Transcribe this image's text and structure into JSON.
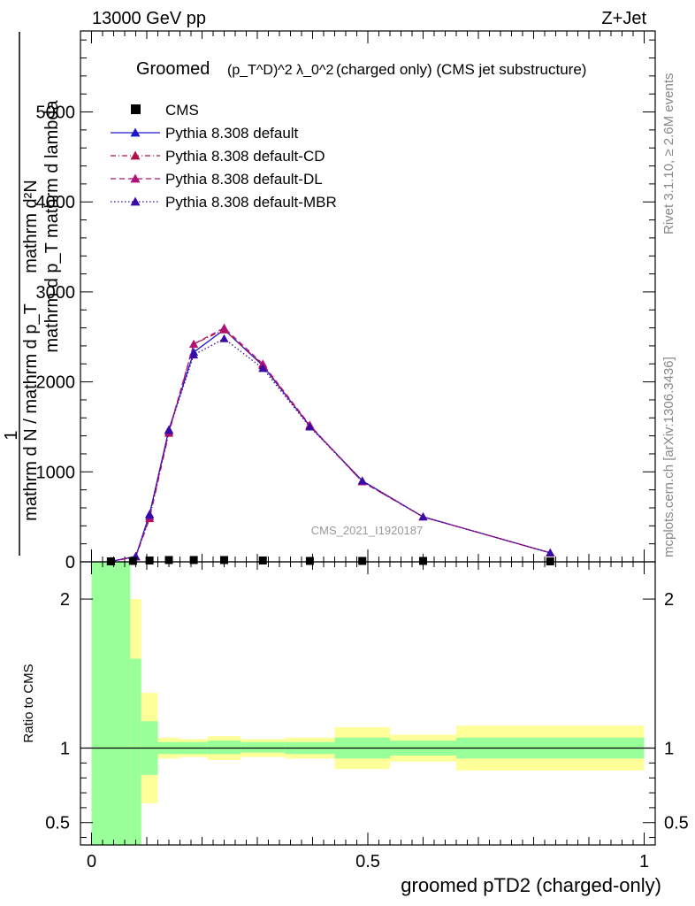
{
  "header": {
    "left": "13000 GeV pp",
    "right": "Z+Jet"
  },
  "side_labels": {
    "rivet": "Rivet 3.1.10, ≥ 2.6M events",
    "mcplots": "mcplots.cern.ch [arXiv:1306.3436]"
  },
  "title": {
    "prefix": "Groomed",
    "mathpart": "(p_T^D)^2 λ_0^2",
    "suffix": "(charged only) (CMS jet substructure)"
  },
  "watermark": "CMS_2021_I1920187",
  "ylabel_main": {
    "numerator": "mathrm d²N",
    "numerator_line2": "mathrm d p_T mathrm d lambda",
    "one": "1",
    "denominator": "mathrm d N / mathrm d p_T"
  },
  "ratio_ylabel": "Ratio to CMS",
  "xlabel": "groomed pTD2 (charged-only)",
  "colors": {
    "cms": "#000000",
    "default": "#1a1acc",
    "cd": "#b0124a",
    "dl": "#b0127a",
    "mbr": "#3a0aa8",
    "band_inner": "#99ff99",
    "band_outer": "#ffff99"
  },
  "chart_data": {
    "type": "line",
    "x_ticks": [
      "0",
      "0.5",
      "1"
    ],
    "main": {
      "ylim": [
        0,
        5900
      ],
      "y_ticks": [
        "0",
        "1000",
        "2000",
        "3000",
        "4000",
        "5000"
      ],
      "y_tick_values": [
        0,
        1000,
        2000,
        3000,
        4000,
        5000
      ],
      "xlim": [
        -0.02,
        1.02
      ],
      "legend_position": "top-left",
      "legend": [
        {
          "name": "CMS",
          "style": "square",
          "color": "#000000"
        },
        {
          "name": "Pythia 8.308 default",
          "style": "solid",
          "color": "#1a1acc"
        },
        {
          "name": "Pythia 8.308 default-CD",
          "style": "dashdot",
          "color": "#b0124a"
        },
        {
          "name": "Pythia 8.308 default-DL",
          "style": "dashed",
          "color": "#b0127a"
        },
        {
          "name": "Pythia 8.308 default-MBR",
          "style": "dotted",
          "color": "#3a0aa8"
        }
      ],
      "cms": {
        "x": [
          0.035,
          0.075,
          0.105,
          0.14,
          0.185,
          0.24,
          0.31,
          0.395,
          0.49,
          0.6,
          0.83
        ],
        "y": [
          5,
          10,
          15,
          20,
          20,
          20,
          15,
          10,
          10,
          10,
          5
        ]
      },
      "series": [
        {
          "name": "Pythia 8.308 default",
          "x": [
            0.035,
            0.08,
            0.105,
            0.14,
            0.185,
            0.24,
            0.31,
            0.395,
            0.49,
            0.6,
            0.83
          ],
          "y": [
            5,
            60,
            530,
            1470,
            2330,
            2580,
            2180,
            1510,
            900,
            500,
            100
          ]
        },
        {
          "name": "Pythia 8.308 default-CD",
          "x": [
            0.035,
            0.08,
            0.105,
            0.14,
            0.185,
            0.24,
            0.31,
            0.395,
            0.49,
            0.6,
            0.83
          ],
          "y": [
            5,
            55,
            480,
            1430,
            2420,
            2580,
            2190,
            1510,
            890,
            500,
            100
          ]
        },
        {
          "name": "Pythia 8.308 default-DL",
          "x": [
            0.035,
            0.08,
            0.105,
            0.14,
            0.185,
            0.24,
            0.31,
            0.395,
            0.49,
            0.6,
            0.83
          ],
          "y": [
            5,
            55,
            500,
            1450,
            2420,
            2600,
            2200,
            1520,
            890,
            500,
            100
          ]
        },
        {
          "name": "Pythia 8.308 default-MBR",
          "x": [
            0.035,
            0.08,
            0.105,
            0.14,
            0.185,
            0.24,
            0.31,
            0.395,
            0.49,
            0.6,
            0.83
          ],
          "y": [
            5,
            60,
            520,
            1460,
            2300,
            2480,
            2150,
            1500,
            900,
            500,
            100
          ]
        }
      ]
    },
    "ratio": {
      "ylim": [
        0.35,
        2.25
      ],
      "y_ticks": [
        "0.5",
        "1",
        "2"
      ],
      "y_tick_values": [
        0.5,
        1,
        2
      ],
      "reference": 1,
      "bands": [
        {
          "x0": 0.0,
          "x1": 0.07,
          "inner": [
            0.35,
            2.25
          ],
          "outer": [
            0.35,
            2.25
          ]
        },
        {
          "x0": 0.07,
          "x1": 0.09,
          "inner": [
            0.35,
            1.6
          ],
          "outer": [
            0.35,
            2.0
          ]
        },
        {
          "x0": 0.09,
          "x1": 0.12,
          "inner": [
            0.82,
            1.18
          ],
          "outer": [
            0.63,
            1.37
          ]
        },
        {
          "x0": 0.12,
          "x1": 0.16,
          "inner": [
            0.96,
            1.04
          ],
          "outer": [
            0.93,
            1.07
          ]
        },
        {
          "x0": 0.16,
          "x1": 0.21,
          "inner": [
            0.96,
            1.04
          ],
          "outer": [
            0.94,
            1.06
          ]
        },
        {
          "x0": 0.21,
          "x1": 0.27,
          "inner": [
            0.96,
            1.05
          ],
          "outer": [
            0.92,
            1.08
          ]
        },
        {
          "x0": 0.27,
          "x1": 0.35,
          "inner": [
            0.97,
            1.04
          ],
          "outer": [
            0.94,
            1.06
          ]
        },
        {
          "x0": 0.35,
          "x1": 0.44,
          "inner": [
            0.96,
            1.04
          ],
          "outer": [
            0.93,
            1.07
          ]
        },
        {
          "x0": 0.44,
          "x1": 0.54,
          "inner": [
            0.93,
            1.07
          ],
          "outer": [
            0.86,
            1.14
          ]
        },
        {
          "x0": 0.54,
          "x1": 0.66,
          "inner": [
            0.95,
            1.05
          ],
          "outer": [
            0.91,
            1.09
          ]
        },
        {
          "x0": 0.66,
          "x1": 1.0,
          "inner": [
            0.93,
            1.07
          ],
          "outer": [
            0.85,
            1.15
          ]
        }
      ]
    }
  }
}
